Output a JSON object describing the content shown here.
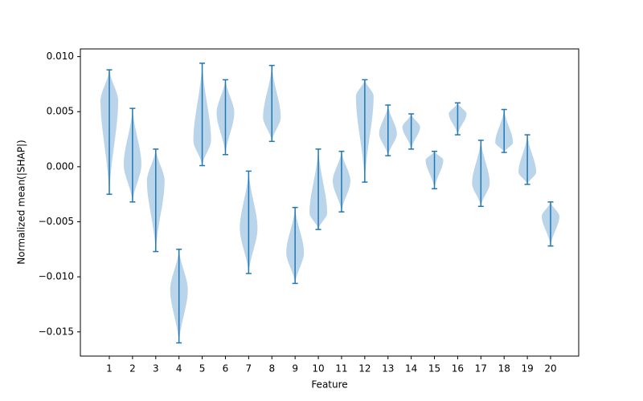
{
  "chart_data": {
    "type": "violin",
    "x_label": "Feature",
    "y_label": "Normalized mean(|SHAP|)",
    "categories": [
      "1",
      "2",
      "3",
      "4",
      "5",
      "6",
      "7",
      "8",
      "9",
      "10",
      "11",
      "12",
      "13",
      "14",
      "15",
      "16",
      "17",
      "18",
      "19",
      "20"
    ],
    "max": [
      0.0088,
      0.0053,
      0.0016,
      -0.0075,
      0.0094,
      0.0079,
      -0.0004,
      0.0092,
      -0.0037,
      0.0016,
      0.0014,
      0.0079,
      0.0056,
      0.0048,
      0.0014,
      0.0058,
      0.0024,
      0.0052,
      0.0029,
      -0.0032
    ],
    "min": [
      -0.0025,
      -0.0032,
      -0.0077,
      -0.016,
      0.0001,
      0.0011,
      -0.0097,
      0.0023,
      -0.0106,
      -0.0057,
      -0.0041,
      -0.0014,
      0.001,
      0.0016,
      -0.002,
      0.0029,
      -0.0036,
      0.0013,
      -0.0016,
      -0.0072
    ],
    "peak": [
      0.006,
      0.0002,
      -0.0013,
      -0.0112,
      0.0024,
      0.0049,
      -0.0056,
      0.0045,
      -0.0078,
      -0.0042,
      -0.0013,
      0.0064,
      0.003,
      0.0036,
      0.0006,
      0.0048,
      -0.0015,
      0.0022,
      -0.0005,
      -0.0045
    ],
    "color": "#1f77b4",
    "body_color": "#aecde6",
    "ylim": [
      -0.0172,
      0.0107
    ],
    "yticks": [
      {
        "value": -0.015,
        "label": "−0.015"
      },
      {
        "value": -0.01,
        "label": "−0.010"
      },
      {
        "value": -0.005,
        "label": "−0.005"
      },
      {
        "value": 0,
        "label": "0.000"
      },
      {
        "value": 0.005,
        "label": "0.005"
      },
      {
        "value": 0.01,
        "label": "0.010"
      }
    ]
  }
}
